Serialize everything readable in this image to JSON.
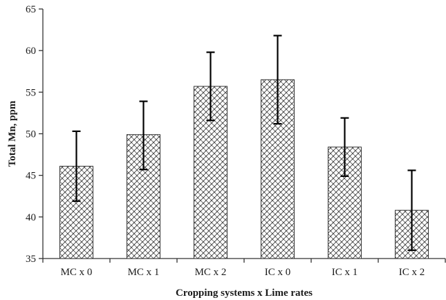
{
  "chart_data": {
    "type": "bar",
    "title": "",
    "xlabel": "Cropping systems x Lime rates",
    "ylabel": "Total Mn, ppm",
    "ylim": [
      35,
      65
    ],
    "yticks": [
      35,
      40,
      45,
      50,
      55,
      60,
      65
    ],
    "grid": false,
    "legend": "none",
    "bar_fill": "crosshatch-pattern",
    "colors": {
      "bar_stroke": "#333333",
      "pattern": "#444444",
      "error_bar": "#000000"
    },
    "categories": [
      "MC x 0",
      "MC x 1",
      "MC x 2",
      "IC x 0",
      "IC x 1",
      "IC x 2"
    ],
    "values": [
      46.1,
      49.9,
      55.7,
      56.5,
      48.4,
      40.8
    ],
    "error_upper": [
      50.3,
      53.9,
      59.8,
      61.8,
      51.9,
      45.6
    ],
    "error_lower": [
      41.9,
      45.7,
      51.6,
      51.2,
      44.9,
      36.0
    ]
  }
}
